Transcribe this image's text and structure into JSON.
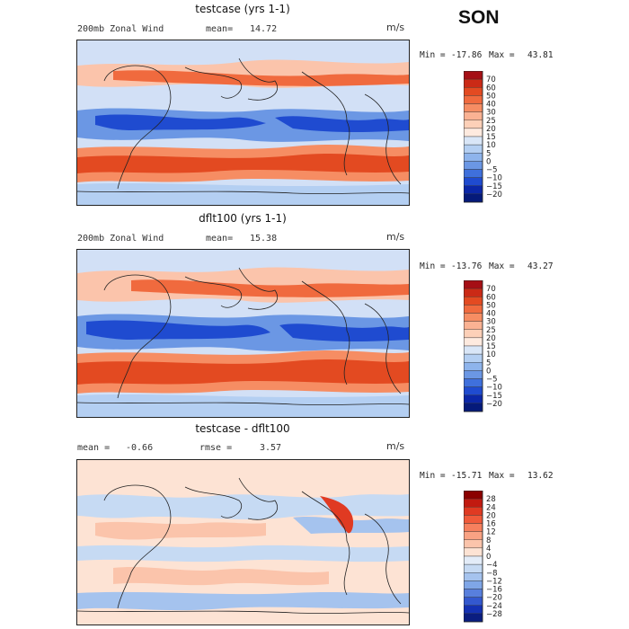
{
  "season": "SON",
  "panels": [
    {
      "title": "testcase (yrs 1-1)",
      "field_label": "200mb Zonal Wind",
      "stat_label": "mean=",
      "stat_value": "14.72",
      "units": "m/s",
      "min_label": "Min =",
      "min_value": "-17.86",
      "max_label": "Max =",
      "max_value": "43.81",
      "colorbar_levels": [
        "70",
        "60",
        "50",
        "40",
        "30",
        "25",
        "20",
        "15",
        "10",
        "5",
        "0",
        "−5",
        "−10",
        "−15",
        "−20"
      ],
      "colorbar_colors": [
        "#a50f15",
        "#cb2a16",
        "#e34a21",
        "#f06a3e",
        "#f68d63",
        "#fab293",
        "#fdd0b8",
        "#feeadf",
        "#d9e6f7",
        "#b4cff2",
        "#8eb4ec",
        "#6b97e4",
        "#3f70dc",
        "#1f4bd0",
        "#0b27a8",
        "#051a7a"
      ],
      "kind": "mean"
    },
    {
      "title": "dflt100 (yrs 1-1)",
      "field_label": "200mb Zonal Wind",
      "stat_label": "mean=",
      "stat_value": "15.38",
      "units": "m/s",
      "min_label": "Min =",
      "min_value": "-13.76",
      "max_label": "Max =",
      "max_value": "43.27",
      "colorbar_levels": [
        "70",
        "60",
        "50",
        "40",
        "30",
        "25",
        "20",
        "15",
        "10",
        "5",
        "0",
        "−5",
        "−10",
        "−15",
        "−20"
      ],
      "colorbar_colors": [
        "#a50f15",
        "#cb2a16",
        "#e34a21",
        "#f06a3e",
        "#f68d63",
        "#fab293",
        "#fdd0b8",
        "#feeadf",
        "#d9e6f7",
        "#b4cff2",
        "#8eb4ec",
        "#6b97e4",
        "#3f70dc",
        "#1f4bd0",
        "#0b27a8",
        "#051a7a"
      ],
      "kind": "mean"
    },
    {
      "title": "testcase - dflt100",
      "field_label": "mean =",
      "field_value": "-0.66",
      "stat_label": "rmse =",
      "stat_value": "3.57",
      "units": "m/s",
      "min_label": "Min =",
      "min_value": "-15.71",
      "max_label": "Max =",
      "max_value": "13.62",
      "colorbar_levels": [
        "28",
        "24",
        "20",
        "16",
        "12",
        "8",
        "4",
        "0",
        "−4",
        "−8",
        "−12",
        "−16",
        "−20",
        "−24",
        "−28"
      ],
      "colorbar_colors": [
        "#8b0000",
        "#c21a10",
        "#e03a22",
        "#f05a3a",
        "#f6805e",
        "#f9a283",
        "#fbc4ab",
        "#fde3d4",
        "#e3ecf8",
        "#c6daf3",
        "#a5c3ee",
        "#7fa6e7",
        "#587fdd",
        "#3358cf",
        "#1431b3",
        "#0a1d80"
      ],
      "kind": "diff"
    }
  ]
}
